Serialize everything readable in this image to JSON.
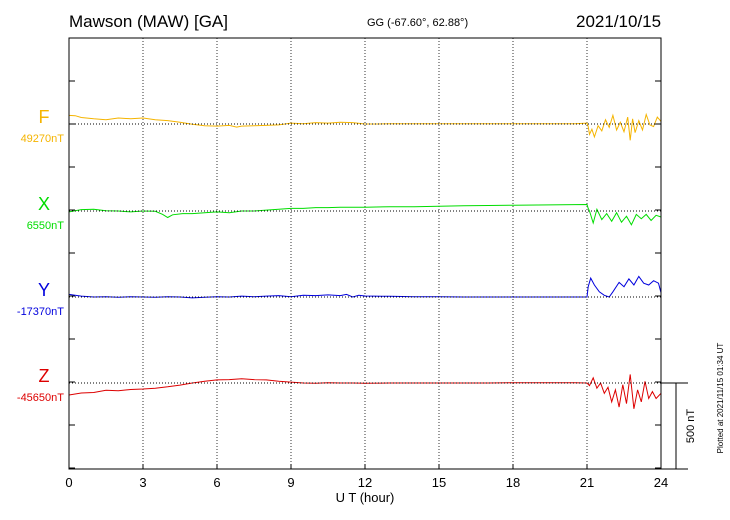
{
  "header": {
    "station": "Mawson (MAW)  [GA]",
    "coords": "GG (-67.60°,  62.88°)",
    "date": "2021/10/15"
  },
  "footer": {
    "plotted": "Plotted at 2021/11/15 01:34 UT"
  },
  "scale": {
    "label": "500 nT",
    "value_nT": 500
  },
  "colors": {
    "F": "#f5b400",
    "X": "#00dd00",
    "Y": "#0000dd",
    "Z": "#dd0000"
  },
  "chart_data": {
    "type": "line",
    "xlabel": "U T (hour)",
    "xlim": [
      0,
      24
    ],
    "xticks": [
      0,
      3,
      6,
      9,
      12,
      15,
      18,
      21,
      24
    ],
    "grid": true,
    "series": [
      {
        "name": "F",
        "baseline_label": "49270nT",
        "baseline_nT": 49270,
        "x": [
          0,
          0.25,
          0.5,
          1,
          1.5,
          2,
          2.5,
          3,
          3.5,
          4,
          4.5,
          5,
          5.5,
          6,
          6.5,
          6.8,
          7,
          7.5,
          8,
          8.5,
          9,
          9.5,
          10,
          10.5,
          11,
          11.5,
          12,
          12.5,
          13,
          14,
          15,
          16,
          17,
          18,
          19,
          20,
          20.5,
          21,
          21.05,
          21.1,
          21.2,
          21.3,
          21.45,
          21.6,
          21.75,
          21.9,
          22.05,
          22.2,
          22.35,
          22.5,
          22.65,
          22.75,
          22.85,
          22.95,
          23.1,
          23.25,
          23.4,
          23.55,
          23.7,
          23.85,
          24
        ],
        "y": [
          49320,
          49318,
          49308,
          49300,
          49295,
          49305,
          49300,
          49305,
          49295,
          49290,
          49280,
          49268,
          49260,
          49258,
          49262,
          49252,
          49258,
          49260,
          49262,
          49265,
          49275,
          49272,
          49278,
          49275,
          49280,
          49278,
          49270,
          49270,
          49272,
          49272,
          49272,
          49272,
          49272,
          49272,
          49272,
          49272,
          49272,
          49275,
          49255,
          49210,
          49240,
          49195,
          49260,
          49230,
          49295,
          49250,
          49320,
          49235,
          49280,
          49225,
          49310,
          49175,
          49300,
          49220,
          49290,
          49235,
          49325,
          49265,
          49255,
          49310,
          49285
        ]
      },
      {
        "name": "X",
        "baseline_label": "6550nT",
        "baseline_nT": 6550,
        "x": [
          0,
          0.5,
          1,
          1.5,
          2,
          2.5,
          3,
          3.5,
          3.8,
          4,
          4.2,
          4.6,
          5,
          5.5,
          6,
          6.5,
          7,
          7.5,
          8,
          8.5,
          9,
          9.5,
          10,
          10.5,
          11,
          11.5,
          12,
          13,
          14,
          15,
          16,
          17,
          18,
          19,
          20,
          20.5,
          21,
          21.05,
          21.1,
          21.25,
          21.4,
          21.6,
          21.8,
          22,
          22.2,
          22.4,
          22.6,
          22.8,
          23,
          23.2,
          23.4,
          23.6,
          23.8,
          24
        ],
        "y": [
          6545,
          6558,
          6560,
          6552,
          6550,
          6545,
          6550,
          6548,
          6530,
          6512,
          6528,
          6535,
          6535,
          6540,
          6545,
          6540,
          6550,
          6550,
          6555,
          6560,
          6565,
          6565,
          6570,
          6570,
          6572,
          6572,
          6572,
          6575,
          6575,
          6578,
          6580,
          6582,
          6584,
          6585,
          6586,
          6587,
          6588,
          6565,
          6550,
          6480,
          6560,
          6500,
          6535,
          6490,
          6540,
          6485,
          6520,
          6470,
          6530,
          6505,
          6530,
          6495,
          6525,
          6515
        ]
      },
      {
        "name": "Y",
        "baseline_label": "-17370nT",
        "baseline_nT": -17370,
        "x": [
          0,
          0.5,
          1,
          1.5,
          2,
          2.5,
          3,
          3.5,
          4,
          4.5,
          5,
          5.5,
          6,
          6.5,
          7,
          7.5,
          8,
          8.5,
          9,
          9.5,
          10,
          10.5,
          11,
          11.25,
          11.5,
          11.75,
          12,
          13,
          14,
          15,
          16,
          17,
          18,
          19,
          20,
          20.5,
          21,
          21.05,
          21.15,
          21.3,
          21.5,
          21.7,
          21.9,
          22.05,
          22.3,
          22.5,
          22.7,
          22.9,
          23.1,
          23.3,
          23.5,
          23.7,
          23.9,
          24
        ],
        "y": [
          -17355,
          -17365,
          -17370,
          -17368,
          -17372,
          -17368,
          -17370,
          -17372,
          -17368,
          -17370,
          -17375,
          -17372,
          -17368,
          -17370,
          -17365,
          -17368,
          -17365,
          -17362,
          -17368,
          -17360,
          -17362,
          -17358,
          -17362,
          -17355,
          -17370,
          -17360,
          -17364,
          -17366,
          -17368,
          -17368,
          -17370,
          -17370,
          -17370,
          -17370,
          -17370,
          -17370,
          -17370,
          -17310,
          -17260,
          -17300,
          -17340,
          -17360,
          -17370,
          -17340,
          -17285,
          -17310,
          -17265,
          -17300,
          -17250,
          -17290,
          -17300,
          -17275,
          -17290,
          -17345
        ]
      },
      {
        "name": "Z",
        "baseline_label": "-45650nT",
        "baseline_nT": -45650,
        "x": [
          0,
          0.5,
          1,
          1.5,
          2,
          2.5,
          3,
          3.5,
          4,
          4.5,
          5,
          5.5,
          6,
          6.5,
          7,
          7.5,
          8,
          8.5,
          9,
          9.5,
          10,
          10.5,
          11,
          11.5,
          12,
          13,
          14,
          15,
          16,
          17,
          18,
          19,
          20,
          20.5,
          21,
          21.1,
          21.25,
          21.4,
          21.55,
          21.7,
          21.85,
          22,
          22.15,
          22.3,
          22.45,
          22.6,
          22.75,
          22.9,
          23.05,
          23.2,
          23.35,
          23.5,
          23.65,
          23.8,
          24
        ],
        "y": [
          -45720,
          -45708,
          -45705,
          -45692,
          -45695,
          -45688,
          -45685,
          -45680,
          -45672,
          -45662,
          -45650,
          -45640,
          -45632,
          -45630,
          -45625,
          -45630,
          -45632,
          -45640,
          -45645,
          -45650,
          -45652,
          -45648,
          -45650,
          -45650,
          -45652,
          -45650,
          -45650,
          -45650,
          -45650,
          -45650,
          -45648,
          -45648,
          -45648,
          -45648,
          -45650,
          -45665,
          -45620,
          -45680,
          -45650,
          -45710,
          -45675,
          -45760,
          -45690,
          -45790,
          -45660,
          -45770,
          -45600,
          -45800,
          -45690,
          -45760,
          -45640,
          -45740,
          -45700,
          -45740,
          -45710
        ]
      }
    ]
  }
}
